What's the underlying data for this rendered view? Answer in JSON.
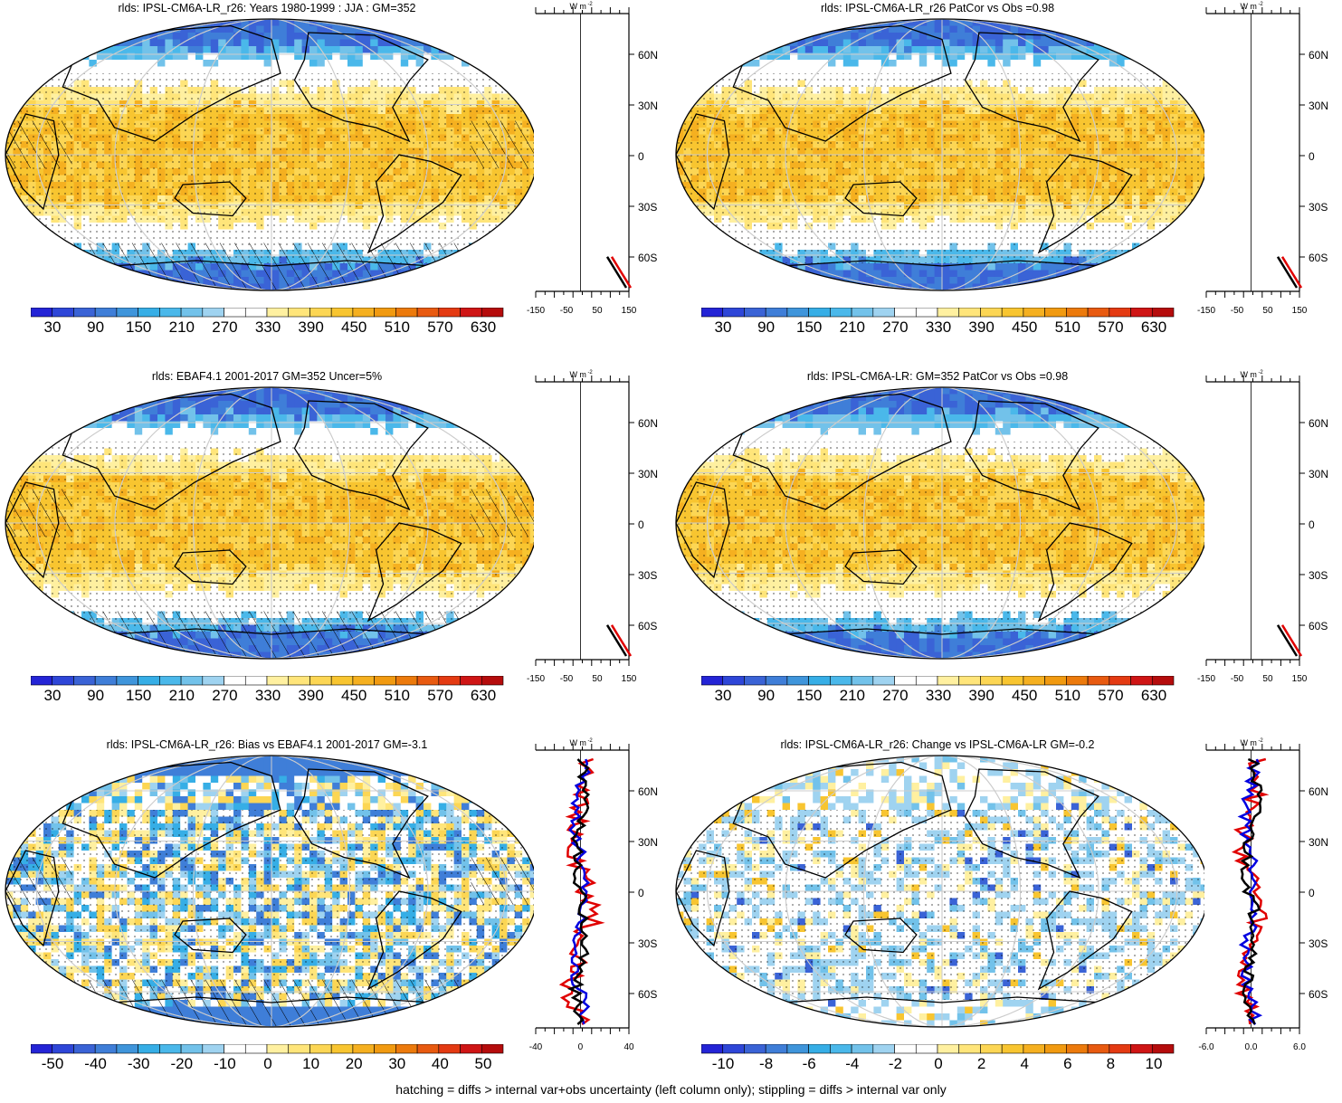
{
  "panels": [
    {
      "id": "p1",
      "title": "rlds: IPSL-CM6A-LR_r26: Years 1980-1999 : JJA : GM=352",
      "mode": "abs",
      "colorbar_labels": [
        "30",
        "90",
        "150",
        "210",
        "270",
        "330",
        "390",
        "450",
        "510",
        "570",
        "630"
      ],
      "profile_ticks": [
        "-150",
        "-50",
        "50",
        "150"
      ],
      "lat_labels": [
        "60N",
        "30N",
        "0",
        "30S",
        "60S"
      ],
      "unit": "W m",
      "hatch": true
    },
    {
      "id": "p2",
      "title": "rlds: IPSL-CM6A-LR_r26 PatCor vs Obs =0.98",
      "mode": "abs",
      "colorbar_labels": [
        "30",
        "90",
        "150",
        "210",
        "270",
        "330",
        "390",
        "450",
        "510",
        "570",
        "630"
      ],
      "profile_ticks": [
        "-150",
        "-50",
        "50",
        "150"
      ],
      "lat_labels": [
        "60N",
        "30N",
        "0",
        "30S",
        "60S"
      ],
      "unit": "W m",
      "hatch": false
    },
    {
      "id": "p3",
      "title": "rlds: EBAF4.1 2001-2017 GM=352 Uncer=5%",
      "mode": "abs",
      "colorbar_labels": [
        "30",
        "90",
        "150",
        "210",
        "270",
        "330",
        "390",
        "450",
        "510",
        "570",
        "630"
      ],
      "profile_ticks": [
        "-150",
        "-50",
        "50",
        "150"
      ],
      "lat_labels": [
        "60N",
        "30N",
        "0",
        "30S",
        "60S"
      ],
      "unit": "W m",
      "hatch": true
    },
    {
      "id": "p4",
      "title": "rlds: IPSL-CM6A-LR: GM=352 PatCor vs Obs =0.98",
      "mode": "abs",
      "colorbar_labels": [
        "30",
        "90",
        "150",
        "210",
        "270",
        "330",
        "390",
        "450",
        "510",
        "570",
        "630"
      ],
      "profile_ticks": [
        "-150",
        "-50",
        "50",
        "150"
      ],
      "lat_labels": [
        "60N",
        "30N",
        "0",
        "30S",
        "60S"
      ],
      "unit": "W m",
      "hatch": false
    },
    {
      "id": "p5",
      "title": "rlds: IPSL-CM6A-LR_r26: Bias vs EBAF4.1 2001-2017 GM=-3.1",
      "mode": "bias",
      "colorbar_labels": [
        "-50",
        "-40",
        "-30",
        "-20",
        "-10",
        "0",
        "10",
        "20",
        "30",
        "40",
        "50"
      ],
      "profile_ticks": [
        "-40",
        "0",
        "40"
      ],
      "lat_labels": [
        "60N",
        "30N",
        "0",
        "30S",
        "60S"
      ],
      "unit": "W m",
      "hatch": true
    },
    {
      "id": "p6",
      "title": "rlds: IPSL-CM6A-LR_r26: Change vs IPSL-CM6A-LR GM=-0.2",
      "mode": "change",
      "colorbar_labels": [
        "-10",
        "-8",
        "-6",
        "-4",
        "-2",
        "0",
        "2",
        "4",
        "6",
        "8",
        "10"
      ],
      "profile_ticks": [
        "-6.0",
        "0.0",
        "6.0"
      ],
      "lat_labels": [
        "60N",
        "30N",
        "0",
        "30S",
        "60S"
      ],
      "unit": "W m",
      "hatch": false
    }
  ],
  "colors": {
    "palette": [
      "#2424d6",
      "#2e46d8",
      "#3a63d6",
      "#3f7ed8",
      "#3f95db",
      "#36aee6",
      "#4ab8ea",
      "#72c2ea",
      "#9fd3f0",
      "#ffffff",
      "#ffffff",
      "#fff0a0",
      "#ffe57a",
      "#fcd654",
      "#f8c530",
      "#f5b020",
      "#f19a10",
      "#ec7a0c",
      "#e85a10",
      "#e43a12",
      "#cf1515",
      "#b50c0c"
    ],
    "coast": "#000000",
    "grid": "#cccccc",
    "profile_model": "#000000",
    "profile_obs": "#e00000",
    "profile_alt": "#0000e0"
  },
  "footer": "hatching = diffs > internal var+obs uncertainty (left column only); stippling = diffs > internal var only"
}
